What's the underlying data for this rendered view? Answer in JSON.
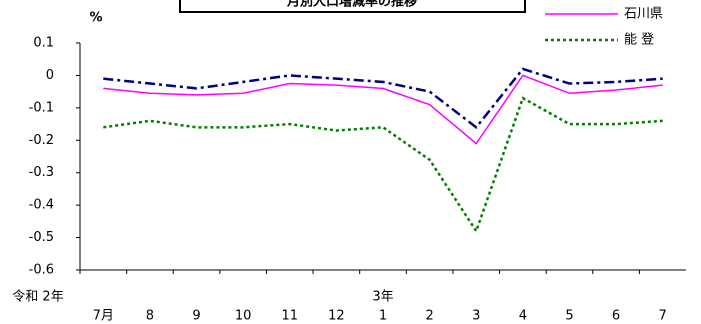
{
  "chart_data": {
    "type": "line",
    "title": "月別人口増減率の推移",
    "y_label": "%",
    "categories": [
      "7月",
      "8",
      "9",
      "10",
      "11",
      "12",
      "1",
      "2",
      "3",
      "4",
      "5",
      "6",
      "7"
    ],
    "year_labels": [
      "令和 2年",
      "3年"
    ],
    "series": [
      {
        "name": "石川県",
        "color": "#ff00ff",
        "dash": "solid",
        "values": [
          -0.04,
          -0.055,
          -0.06,
          -0.055,
          -0.025,
          -0.03,
          -0.04,
          -0.09,
          -0.21,
          0,
          -0.055,
          -0.045,
          -0.03
        ]
      },
      {
        "name": "能 登",
        "color": "#008000",
        "dash": "dotted",
        "values": [
          -0.16,
          -0.14,
          -0.16,
          -0.16,
          -0.15,
          -0.17,
          -0.16,
          -0.26,
          -0.48,
          -0.07,
          -0.15,
          -0.15,
          -0.14
        ]
      },
      {
        "color": "#000080",
        "dash": "dashdot",
        "values": [
          -0.01,
          -0.025,
          -0.04,
          -0.02,
          0,
          -0.01,
          -0.02,
          -0.05,
          -0.16,
          0.02,
          -0.025,
          -0.02,
          -0.01
        ]
      }
    ],
    "ylim": [
      -0.6,
      0.1
    ],
    "yticks": [
      0.1,
      0,
      -0.1,
      -0.2,
      -0.3,
      -0.4,
      -0.5,
      -0.6
    ],
    "legend": "top-right"
  }
}
